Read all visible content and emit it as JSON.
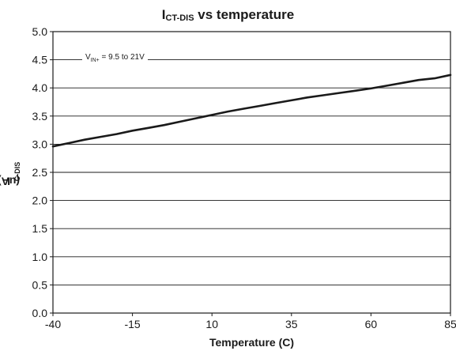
{
  "chart_data": {
    "type": "line",
    "title": {
      "main": "I",
      "sub": "CT-DIS",
      "rest": " vs temperature"
    },
    "xlabel": "Temperature (C)",
    "ylabel": {
      "main": "I",
      "sub": "C-DIS",
      "rest": " (uA)"
    },
    "xlim": [
      -40,
      85
    ],
    "ylim": [
      0,
      5
    ],
    "x_ticks": [
      "-40",
      "-15",
      "10",
      "35",
      "60",
      "85"
    ],
    "y_ticks": [
      "0.0",
      "0.5",
      "1.0",
      "1.5",
      "2.0",
      "2.5",
      "3.0",
      "3.5",
      "4.0",
      "4.5",
      "5.0"
    ],
    "grid": "horizontal",
    "annotation": {
      "main": "V",
      "sub": "IN+",
      "rest": " = 9.5 to 21V"
    },
    "series": [
      {
        "x": [
          -40,
          -35,
          -30,
          -25,
          -20,
          -15,
          -10,
          -5,
          0,
          5,
          10,
          15,
          20,
          25,
          30,
          35,
          40,
          45,
          50,
          55,
          60,
          65,
          70,
          75,
          80,
          85
        ],
        "y": [
          2.96,
          3.02,
          3.08,
          3.13,
          3.18,
          3.24,
          3.29,
          3.34,
          3.4,
          3.46,
          3.52,
          3.58,
          3.63,
          3.68,
          3.73,
          3.78,
          3.83,
          3.87,
          3.91,
          3.95,
          3.99,
          4.04,
          4.09,
          4.14,
          4.17,
          4.23
        ]
      }
    ],
    "colors": {
      "line": "#1a1a1a",
      "grid": "#1a1a1a"
    }
  }
}
